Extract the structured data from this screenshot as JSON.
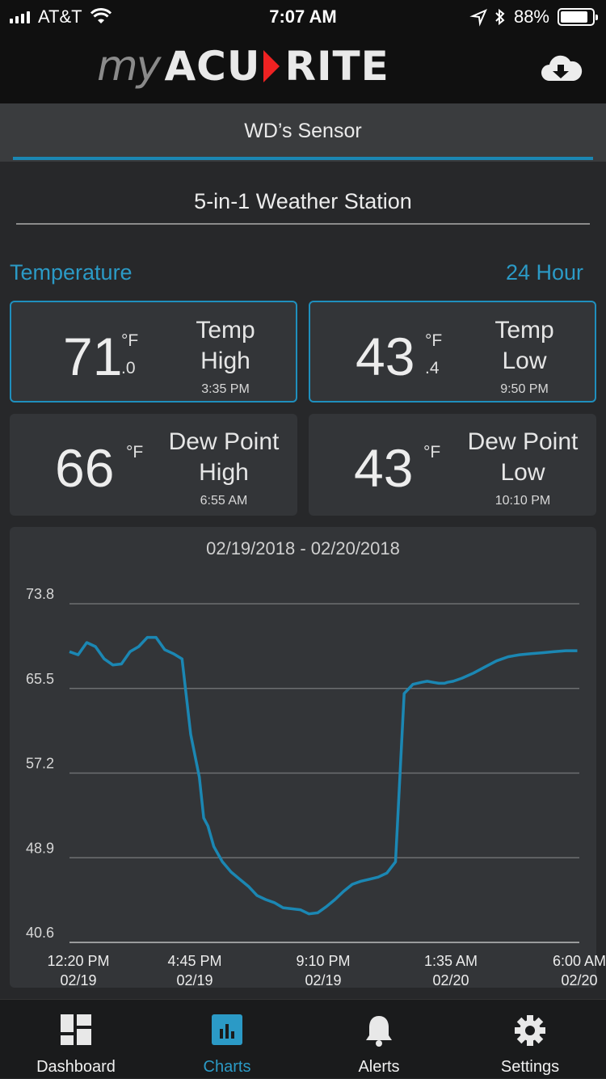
{
  "status_bar": {
    "carrier": "AT&T",
    "time": "7:07 AM",
    "battery": "88%",
    "battery_level": 0.88
  },
  "header": {
    "logo_my": "my",
    "logo_acu": "ACU",
    "logo_rite": "RITE",
    "cloud_icon": "cloud-download-icon"
  },
  "sensor": {
    "name": "WD’s Sensor"
  },
  "station": {
    "name": "5-in-1 Weather Station"
  },
  "metric": {
    "label": "Temperature",
    "period": "24 Hour"
  },
  "cards": {
    "temp_high": {
      "value": "71",
      "unit": "°F",
      "decimal": ".0",
      "label1": "Temp",
      "label2": "High",
      "time": "3:35 PM"
    },
    "temp_low": {
      "value": "43",
      "unit": "°F",
      "decimal": ".4",
      "label1": "Temp",
      "label2": "Low",
      "time": "9:50 PM"
    },
    "dew_high": {
      "value": "66",
      "unit": "°F",
      "label1": "Dew Point",
      "label2": "High",
      "time": "6:55 AM"
    },
    "dew_low": {
      "value": "43",
      "unit": "°F",
      "label1": "Dew Point",
      "label2": "Low",
      "time": "10:10 PM"
    }
  },
  "chart_data": {
    "type": "line",
    "title": "02/19/2018 - 02/20/2018",
    "xlabel": "",
    "ylabel": "",
    "y_ticks": [
      "73.8",
      "65.5",
      "57.2",
      "48.9",
      "40.6"
    ],
    "ylim": [
      40.6,
      73.8
    ],
    "x_ticks": [
      {
        "time": "12:20 PM",
        "date": "02/19"
      },
      {
        "time": "4:45 PM",
        "date": "02/19"
      },
      {
        "time": "9:10 PM",
        "date": "02/19"
      },
      {
        "time": "1:35 AM",
        "date": "02/20"
      },
      {
        "time": "6:00 AM",
        "date": "02/20"
      }
    ],
    "x_hours_range": [
      0,
      17.67
    ],
    "grid": true,
    "series": [
      {
        "color": "#1b87b3",
        "x": [
          0,
          0.3,
          0.6,
          0.9,
          1.2,
          1.5,
          1.8,
          2.1,
          2.4,
          2.7,
          3.0,
          3.3,
          3.6,
          3.9,
          4.2,
          4.5,
          4.65,
          4.8,
          5.0,
          5.3,
          5.6,
          5.9,
          6.2,
          6.5,
          6.8,
          7.1,
          7.4,
          7.7,
          8.0,
          8.3,
          8.6,
          8.9,
          9.2,
          9.5,
          9.8,
          10.1,
          10.4,
          10.7,
          11.0,
          11.3,
          11.6,
          11.9,
          12.2,
          12.4,
          12.6,
          12.8,
          13.0,
          13.1,
          13.3,
          13.6,
          14.0,
          14.4,
          14.8,
          15.2,
          15.6,
          16.0,
          16.4,
          16.8,
          17.2,
          17.6
        ],
        "y": [
          69.1,
          68.8,
          70.0,
          69.6,
          68.4,
          67.8,
          67.9,
          69.1,
          69.6,
          70.5,
          70.5,
          69.3,
          68.9,
          68.4,
          61.0,
          56.8,
          52.8,
          52.0,
          50.0,
          48.5,
          47.5,
          46.8,
          46.1,
          45.2,
          44.8,
          44.5,
          44.0,
          43.9,
          43.8,
          43.4,
          43.5,
          44.1,
          44.8,
          45.6,
          46.3,
          46.6,
          46.8,
          47.0,
          47.4,
          48.5,
          65.0,
          65.9,
          66.1,
          66.2,
          66.1,
          66.0,
          66.0,
          66.1,
          66.2,
          66.5,
          67.0,
          67.6,
          68.2,
          68.6,
          68.8,
          68.9,
          69.0,
          69.1,
          69.2,
          69.2
        ]
      }
    ]
  },
  "tabs": [
    {
      "label": "Dashboard",
      "icon": "dashboard-icon"
    },
    {
      "label": "Charts",
      "icon": "charts-icon"
    },
    {
      "label": "Alerts",
      "icon": "bell-icon"
    },
    {
      "label": "Settings",
      "icon": "gear-icon"
    }
  ]
}
